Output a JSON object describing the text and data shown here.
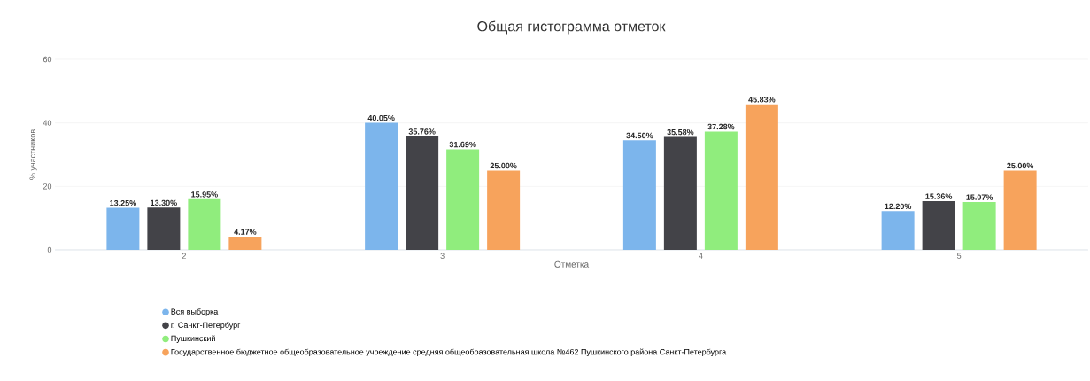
{
  "chart_data": {
    "type": "bar",
    "title": "Общая гистограмма отметок",
    "xlabel": "Отметка",
    "ylabel": "% участников",
    "categories": [
      "2",
      "3",
      "4",
      "5"
    ],
    "series": [
      {
        "name": "Вся выборка",
        "color": "#7cb5ec",
        "values": [
          13.25,
          40.05,
          34.5,
          12.2
        ],
        "value_labels": [
          "13.25%",
          "40.05%",
          "34.50%",
          "12.20%"
        ]
      },
      {
        "name": "г. Санкт-Петербург",
        "color": "#434348",
        "values": [
          13.3,
          35.76,
          35.58,
          15.36
        ],
        "value_labels": [
          "13.30%",
          "35.76%",
          "35.58%",
          "15.36%"
        ]
      },
      {
        "name": "Пушкинский",
        "color": "#90ed7d",
        "values": [
          15.95,
          31.69,
          37.28,
          15.07
        ],
        "value_labels": [
          "15.95%",
          "31.69%",
          "37.28%",
          "15.07%"
        ]
      },
      {
        "name": "Государственное бюджетное общеобразовательное учреждение средняя общеобразовательная школа №462 Пушкинского района Санкт-Петербурга",
        "color": "#f7a35c",
        "values": [
          4.17,
          25.0,
          45.83,
          25.0
        ],
        "value_labels": [
          "4.17%",
          "25.00%",
          "45.83%",
          "25.00%"
        ]
      }
    ],
    "ylim": [
      0,
      60
    ],
    "yticks": [
      0,
      20,
      40,
      60
    ],
    "grid": "y",
    "legend": "bottom"
  }
}
